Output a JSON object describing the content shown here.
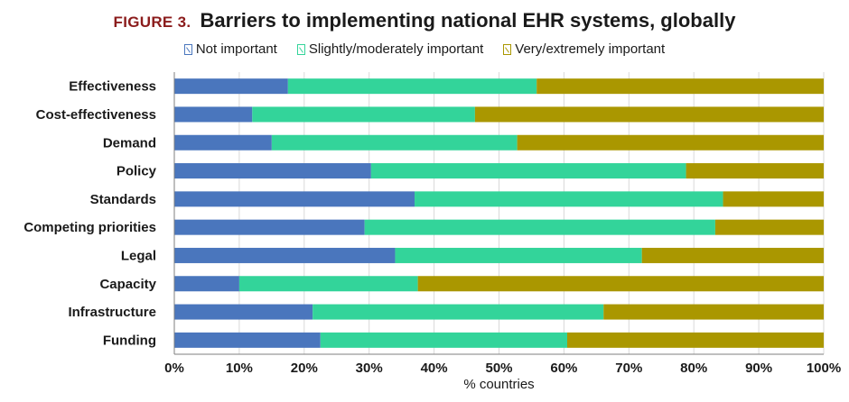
{
  "figure_label": "FIGURE 3.",
  "figure_title": "Barriers to implementing national EHR systems, globally",
  "chart_data": {
    "type": "bar",
    "orientation": "horizontal",
    "stacked": true,
    "title": "Barriers to implementing national EHR systems, globally",
    "xlabel": "% countries",
    "ylabel": "",
    "xlim": [
      0,
      100
    ],
    "x_ticks": [
      "0%",
      "10%",
      "20%",
      "30%",
      "40%",
      "50%",
      "60%",
      "70%",
      "80%",
      "90%",
      "100%"
    ],
    "legend_position": "top",
    "grid": true,
    "categories": [
      "Effectiveness",
      "Cost-effectiveness",
      "Demand",
      "Policy",
      "Standards",
      "Competing priorities",
      "Legal",
      "Capacity",
      "Infrastructure",
      "Funding"
    ],
    "series": [
      {
        "name": "Not important",
        "color": "#4a76bd",
        "values": [
          17.5,
          12,
          15,
          30.3,
          37,
          29.3,
          34,
          10,
          21.3,
          22.5
        ]
      },
      {
        "name": "Slightly/moderately important",
        "color": "#33d49a",
        "values": [
          38.3,
          34.3,
          37.8,
          48.5,
          47.5,
          54,
          38,
          27.5,
          44.8,
          38
        ]
      },
      {
        "name": "Very/extremely important",
        "color": "#aa9700",
        "values": [
          44.2,
          53.7,
          47.2,
          21.2,
          15.5,
          16.7,
          28,
          62.5,
          33.9,
          39.5
        ]
      }
    ]
  }
}
